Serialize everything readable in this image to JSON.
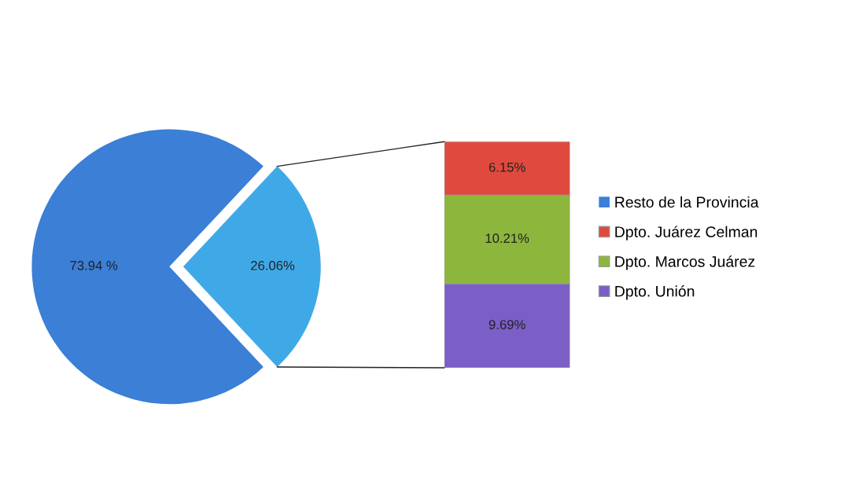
{
  "chart_data": [
    {
      "type": "pie",
      "categories": [
        "Resto de la Provincia",
        null
      ],
      "values": [
        73.94,
        26.06
      ],
      "colors": [
        "#3b7fd6",
        "#3fa9e8"
      ],
      "value_labels": [
        "73.94 %",
        "26.06%"
      ],
      "legend": "right"
    },
    {
      "type": "bar",
      "stacked": true,
      "categories": [
        null
      ],
      "legend": "right",
      "series": [
        {
          "name": "Dpto. Unión",
          "color": "#7b5ec6",
          "values": [
            9.69
          ],
          "value_labels": [
            "9.69%"
          ]
        },
        {
          "name": "Dpto. Marcos Juárez",
          "color": "#8db63c",
          "values": [
            10.21
          ],
          "value_labels": [
            "10.21%"
          ]
        },
        {
          "name": "Dpto. Juárez Celman",
          "color": "#e04a3e",
          "values": [
            6.15
          ],
          "value_labels": [
            "6.15%"
          ]
        }
      ]
    }
  ]
}
